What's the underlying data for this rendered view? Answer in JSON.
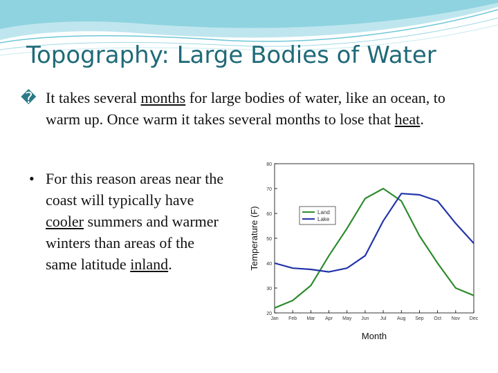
{
  "slide": {
    "title": "Topography: Large Bodies of Water",
    "bullet1": {
      "mark": "�",
      "parts": [
        "It takes several ",
        "months",
        " for large bodies of water, like an ocean, to warm up. Once warm it takes several months to lose that ",
        "heat",
        "."
      ]
    },
    "bullet2": {
      "dot": "•",
      "parts": [
        "For this reason areas near the coast will typically have ",
        "cooler",
        " summers and warmer winters than areas of the same latitude ",
        "inland",
        "."
      ]
    }
  },
  "colors": {
    "title": "#1f6a78",
    "land": "#2e8b2e",
    "lake": "#2233aa",
    "wave_dark": "#6ec6d6",
    "wave_light": "#bfe6ee"
  },
  "chart_data": {
    "type": "line",
    "xlabel": "Month",
    "ylabel": "Temperature (F)",
    "categories": [
      "Jan",
      "Feb",
      "Mar",
      "Apr",
      "May",
      "Jun",
      "Jul",
      "Aug",
      "Sep",
      "Oct",
      "Nov",
      "Dec"
    ],
    "yticks": [
      "20",
      "30",
      "40",
      "50",
      "60",
      "70",
      "80"
    ],
    "ylim": [
      20,
      80
    ],
    "legend_position": "top-center",
    "series": [
      {
        "name": "Land",
        "color": "#2e8b2e",
        "values": [
          22,
          25,
          31,
          43,
          54,
          66,
          70,
          65,
          51,
          40,
          30,
          27
        ]
      },
      {
        "name": "Lake",
        "color": "#2233aa",
        "values": [
          40,
          38,
          37.5,
          36.5,
          38,
          43,
          57,
          68,
          67.5,
          65,
          56,
          48
        ]
      }
    ]
  }
}
